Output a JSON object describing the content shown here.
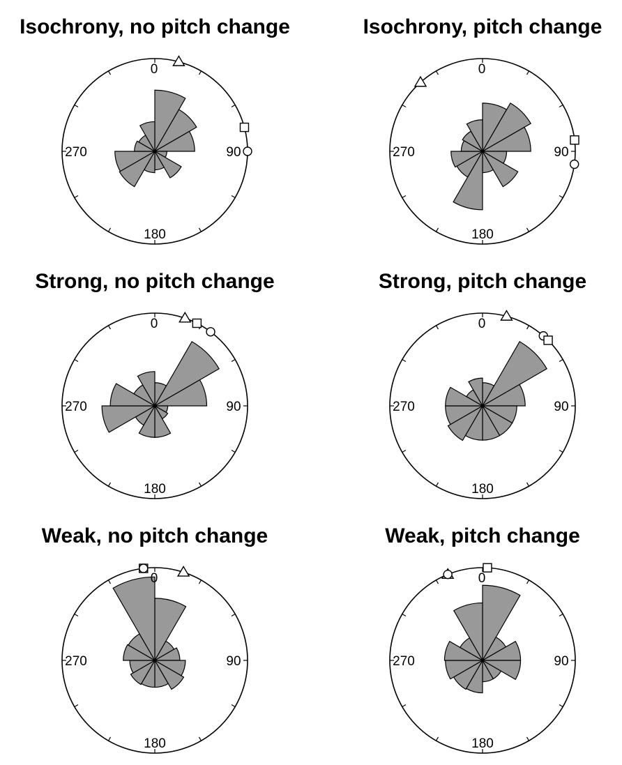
{
  "figure": {
    "colors": {
      "wedge_fill": "#999999",
      "stroke": "#000000",
      "background": "#ffffff"
    }
  },
  "chart_data": [
    {
      "type": "polar-histogram",
      "title": "Isochrony, no pitch change",
      "angle_labels": [
        "0",
        "90",
        "180",
        "270"
      ],
      "bin_width_deg": 30,
      "bin_centers_deg": [
        15,
        45,
        75,
        105,
        135,
        165,
        195,
        225,
        255,
        285,
        315,
        345
      ],
      "values": [
        0.66,
        0.52,
        0.43,
        0.13,
        0.33,
        0.2,
        0.23,
        0.44,
        0.43,
        0.22,
        0.2,
        0.32
      ],
      "markers": [
        {
          "shape": "triangle",
          "angle_deg": 15
        },
        {
          "shape": "square",
          "angle_deg": 75
        },
        {
          "shape": "circle",
          "angle_deg": 90
        }
      ]
    },
    {
      "type": "polar-histogram",
      "title": "Isochrony, pitch change",
      "angle_labels": [
        "0",
        "90",
        "180",
        "270"
      ],
      "bin_width_deg": 30,
      "bin_centers_deg": [
        15,
        45,
        75,
        105,
        135,
        165,
        195,
        225,
        255,
        285,
        315,
        345
      ],
      "values": [
        0.52,
        0.6,
        0.52,
        0.26,
        0.44,
        0.23,
        0.63,
        0.32,
        0.34,
        0.23,
        0.25,
        0.34
      ],
      "markers": [
        {
          "shape": "triangle",
          "angle_deg": 318
        },
        {
          "shape": "square",
          "angle_deg": 83
        },
        {
          "shape": "circle",
          "angle_deg": 98
        }
      ]
    },
    {
      "type": "polar-histogram",
      "title": "Strong, no pitch change",
      "angle_labels": [
        "0",
        "90",
        "180",
        "270"
      ],
      "bin_width_deg": 30,
      "bin_centers_deg": [
        15,
        45,
        75,
        105,
        135,
        165,
        195,
        225,
        255,
        285,
        315,
        345
      ],
      "values": [
        0.25,
        0.8,
        0.56,
        0.14,
        0.16,
        0.34,
        0.34,
        0.24,
        0.57,
        0.48,
        0.26,
        0.37
      ],
      "markers": [
        {
          "shape": "triangle",
          "angle_deg": 19
        },
        {
          "shape": "square",
          "angle_deg": 27
        },
        {
          "shape": "circle",
          "angle_deg": 37
        }
      ]
    },
    {
      "type": "polar-histogram",
      "title": "Strong, pitch change",
      "angle_labels": [
        "0",
        "90",
        "180",
        "270"
      ],
      "bin_width_deg": 30,
      "bin_centers_deg": [
        15,
        45,
        75,
        105,
        135,
        165,
        195,
        225,
        255,
        285,
        315,
        345
      ],
      "values": [
        0.25,
        0.8,
        0.46,
        0.37,
        0.37,
        0.37,
        0.37,
        0.43,
        0.4,
        0.4,
        0.2,
        0.3
      ],
      "markers": [
        {
          "shape": "triangle",
          "angle_deg": 15
        },
        {
          "shape": "circle",
          "angle_deg": 41
        },
        {
          "shape": "square",
          "angle_deg": 45
        }
      ]
    },
    {
      "type": "polar-histogram",
      "title": "Weak, no pitch change",
      "angle_labels": [
        "0",
        "90",
        "180",
        "270"
      ],
      "bin_width_deg": 30,
      "bin_centers_deg": [
        15,
        45,
        75,
        105,
        135,
        165,
        195,
        225,
        255,
        285,
        315,
        345
      ],
      "values": [
        0.67,
        0.24,
        0.27,
        0.33,
        0.36,
        0.29,
        0.29,
        0.3,
        0.27,
        0.34,
        0.33,
        0.9
      ],
      "markers": [
        {
          "shape": "triangle",
          "angle_deg": 18
        },
        {
          "shape": "square",
          "angle_deg": 353
        },
        {
          "shape": "circle",
          "angle_deg": 353
        }
      ]
    },
    {
      "type": "polar-histogram",
      "title": "Weak, pitch change",
      "angle_labels": [
        "0",
        "90",
        "180",
        "270"
      ],
      "bin_width_deg": 30,
      "bin_centers_deg": [
        15,
        45,
        75,
        105,
        135,
        165,
        195,
        225,
        255,
        285,
        315,
        345
      ],
      "values": [
        0.81,
        0.29,
        0.41,
        0.41,
        0.23,
        0.23,
        0.35,
        0.36,
        0.4,
        0.41,
        0.28,
        0.62
      ],
      "markers": [
        {
          "shape": "triangle",
          "angle_deg": 338
        },
        {
          "shape": "circle",
          "angle_deg": 338
        },
        {
          "shape": "square",
          "angle_deg": 3
        }
      ]
    }
  ]
}
